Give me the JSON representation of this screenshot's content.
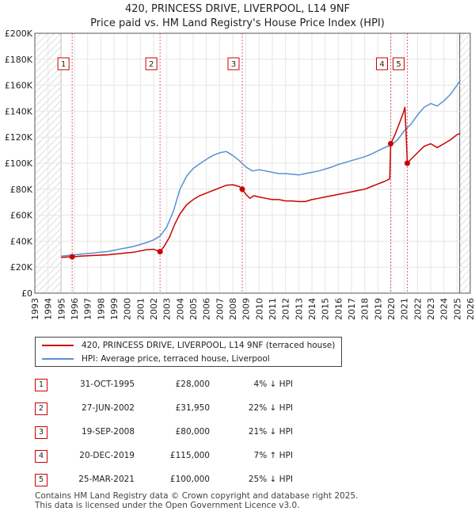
{
  "chart_data": {
    "type": "line",
    "title": "420, PRINCESS DRIVE, LIVERPOOL, L14 9NF",
    "subtitle": "Price paid vs. HM Land Registry's House Price Index (HPI)",
    "xlim": [
      1993,
      2026
    ],
    "ylim": [
      0,
      200000
    ],
    "y_ticks": [
      0,
      20000,
      40000,
      60000,
      80000,
      100000,
      120000,
      140000,
      160000,
      180000,
      200000
    ],
    "y_tick_labels": [
      "£0",
      "£20K",
      "£40K",
      "£60K",
      "£80K",
      "£100K",
      "£120K",
      "£140K",
      "£160K",
      "£180K",
      "£200K"
    ],
    "x_ticks": [
      1993,
      1994,
      1995,
      1996,
      1997,
      1998,
      1999,
      2000,
      2001,
      2002,
      2003,
      2004,
      2005,
      2006,
      2007,
      2008,
      2009,
      2010,
      2011,
      2012,
      2013,
      2014,
      2015,
      2016,
      2017,
      2018,
      2019,
      2020,
      2021,
      2022,
      2023,
      2024,
      2025,
      2026
    ],
    "x_tick_labels": [
      "1993",
      "1994",
      "1995",
      "1996",
      "1997",
      "1998",
      "1999",
      "2000",
      "2001",
      "2002",
      "2003",
      "2004",
      "2005",
      "2006",
      "2007",
      "2008",
      "2009",
      "2010",
      "2011",
      "2012",
      "2013",
      "2014",
      "2015",
      "2016",
      "2017",
      "2018",
      "2019",
      "2020",
      "2021",
      "2022",
      "2023",
      "2024",
      "2025",
      "2026"
    ],
    "hatched_ranges": [
      [
        1993,
        1995.0
      ],
      [
        2025.2,
        2026
      ]
    ],
    "series": [
      {
        "name": "420, PRINCESS DRIVE, LIVERPOOL, L14 9NF (terraced house)",
        "color": "#cc0000",
        "x": [
          1995.0,
          1995.5,
          1995.83,
          1996.5,
          1997.5,
          1998.5,
          1999.5,
          2000.5,
          2001.0,
          2001.5,
          2002.0,
          2002.49,
          2002.8,
          2003.2,
          2003.6,
          2004.0,
          2004.5,
          2005.0,
          2005.5,
          2006.0,
          2006.5,
          2007.0,
          2007.5,
          2008.0,
          2008.5,
          2008.72,
          2009.0,
          2009.3,
          2009.6,
          2010.0,
          2010.5,
          2011.0,
          2011.5,
          2012.0,
          2012.5,
          2013.0,
          2013.5,
          2014.0,
          2014.5,
          2015.0,
          2015.5,
          2016.0,
          2016.5,
          2017.0,
          2017.5,
          2018.0,
          2018.5,
          2019.0,
          2019.5,
          2019.9,
          2019.97,
          2020.3,
          2020.6,
          2020.9,
          2021.05,
          2021.15,
          2021.23,
          2021.5,
          2022.0,
          2022.5,
          2023.0,
          2023.5,
          2024.0,
          2024.5,
          2025.0,
          2025.25
        ],
        "y": [
          27500,
          27800,
          28000,
          28500,
          29000,
          29500,
          30500,
          31500,
          32500,
          33500,
          33800,
          31950,
          36000,
          43000,
          53000,
          61000,
          68000,
          72000,
          75000,
          77000,
          79000,
          81000,
          83000,
          83500,
          82000,
          80000,
          76000,
          73000,
          75000,
          74000,
          73000,
          72000,
          72000,
          71000,
          71000,
          70500,
          70500,
          72000,
          73000,
          74000,
          75000,
          76000,
          77000,
          78000,
          79000,
          80000,
          82000,
          84000,
          86000,
          88000,
          115000,
          122000,
          130000,
          138000,
          143000,
          120000,
          100000,
          103000,
          108000,
          113000,
          115000,
          112000,
          115000,
          118000,
          122000,
          123000
        ]
      },
      {
        "name": "HPI: Average price, terraced house, Liverpool",
        "color": "#5b8fd4",
        "x": [
          1995.0,
          1995.5,
          1996.0,
          1996.5,
          1997.0,
          1997.5,
          1998.0,
          1998.5,
          1999.0,
          1999.5,
          2000.0,
          2000.5,
          2001.0,
          2001.5,
          2002.0,
          2002.5,
          2003.0,
          2003.5,
          2004.0,
          2004.5,
          2005.0,
          2005.5,
          2006.0,
          2006.5,
          2007.0,
          2007.5,
          2008.0,
          2008.5,
          2009.0,
          2009.5,
          2010.0,
          2010.5,
          2011.0,
          2011.5,
          2012.0,
          2012.5,
          2013.0,
          2013.5,
          2014.0,
          2014.5,
          2015.0,
          2015.5,
          2016.0,
          2016.5,
          2017.0,
          2017.5,
          2018.0,
          2018.5,
          2019.0,
          2019.5,
          2020.0,
          2020.5,
          2021.0,
          2021.5,
          2022.0,
          2022.5,
          2023.0,
          2023.5,
          2024.0,
          2024.5,
          2025.0,
          2025.25
        ],
        "y": [
          28500,
          29000,
          29500,
          30000,
          30500,
          31000,
          31500,
          32000,
          33000,
          34000,
          35000,
          36000,
          37500,
          39000,
          41000,
          44000,
          51000,
          63000,
          80000,
          90000,
          96000,
          99500,
          103000,
          106000,
          108000,
          109000,
          106000,
          102000,
          97000,
          94000,
          95000,
          94000,
          93000,
          92000,
          92000,
          91500,
          91000,
          92000,
          93000,
          94000,
          95500,
          97000,
          99000,
          100500,
          102000,
          103500,
          105000,
          107000,
          109500,
          112000,
          114000,
          118000,
          125000,
          130000,
          137000,
          143000,
          146000,
          144000,
          148000,
          153000,
          160000,
          164000
        ]
      }
    ],
    "sales": [
      {
        "n": "1",
        "x": 1995.83,
        "y": 28000
      },
      {
        "n": "2",
        "x": 2002.49,
        "y": 31950
      },
      {
        "n": "3",
        "x": 2008.72,
        "y": 80000
      },
      {
        "n": "4",
        "x": 2019.97,
        "y": 115000
      },
      {
        "n": "5",
        "x": 2021.23,
        "y": 100000
      }
    ],
    "label_y": 175000
  },
  "legend": {
    "items": [
      {
        "label": "420, PRINCESS DRIVE, LIVERPOOL, L14 9NF (terraced house)",
        "color": "#cc0000"
      },
      {
        "label": "HPI: Average price, terraced house, Liverpool",
        "color": "#5b8fd4"
      }
    ]
  },
  "transactions": [
    {
      "n": "1",
      "date": "31-OCT-1995",
      "price": "£28,000",
      "hpi": "4% ↓ HPI"
    },
    {
      "n": "2",
      "date": "27-JUN-2002",
      "price": "£31,950",
      "hpi": "22% ↓ HPI"
    },
    {
      "n": "3",
      "date": "19-SEP-2008",
      "price": "£80,000",
      "hpi": "21% ↓ HPI"
    },
    {
      "n": "4",
      "date": "20-DEC-2019",
      "price": "£115,000",
      "hpi": "7% ↑ HPI"
    },
    {
      "n": "5",
      "date": "25-MAR-2021",
      "price": "£100,000",
      "hpi": "25% ↓ HPI"
    }
  ],
  "footer": {
    "line1": "Contains HM Land Registry data © Crown copyright and database right 2025.",
    "line2": "This data is licensed under the Open Government Licence v3.0."
  }
}
